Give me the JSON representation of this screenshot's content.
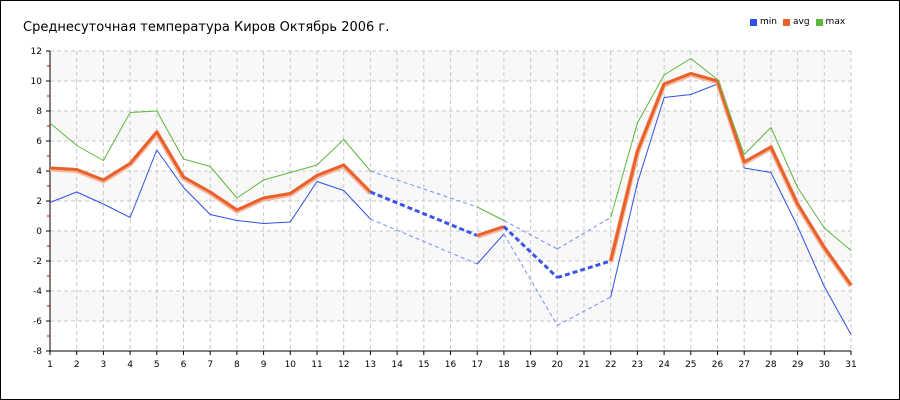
{
  "chart_data": {
    "type": "line",
    "title": "Среднесуточная температура Киров  Октябрь 2006 г.",
    "x": [
      1,
      2,
      3,
      4,
      5,
      6,
      7,
      8,
      9,
      10,
      11,
      12,
      13,
      14,
      15,
      16,
      17,
      18,
      19,
      20,
      21,
      22,
      23,
      24,
      25,
      26,
      27,
      28,
      29,
      30,
      31
    ],
    "xlim": [
      1,
      31
    ],
    "ylim": [
      -8,
      12
    ],
    "yticks": [
      -8,
      -6,
      -4,
      -2,
      0,
      2,
      4,
      6,
      8,
      10,
      12
    ],
    "grid": true,
    "legend_position": "top-right",
    "missing_values_interpolated": "dashed",
    "series": [
      {
        "name": "min",
        "color": "#2f50e6",
        "values": [
          1.9,
          2.6,
          1.8,
          0.9,
          5.4,
          2.9,
          1.1,
          0.7,
          0.5,
          0.6,
          3.3,
          2.7,
          0.8,
          null,
          null,
          null,
          -2.2,
          -0.2,
          null,
          -6.3,
          null,
          -4.4,
          3.2,
          8.9,
          9.1,
          9.8,
          4.2,
          3.9,
          0.3,
          -3.7,
          -6.9
        ]
      },
      {
        "name": "avg",
        "color": "#e8602a",
        "values": [
          4.2,
          4.1,
          3.4,
          4.5,
          6.6,
          3.6,
          2.6,
          1.4,
          2.2,
          2.5,
          3.7,
          4.4,
          2.6,
          null,
          null,
          null,
          -0.3,
          0.3,
          null,
          -3.1,
          null,
          -2.0,
          5.3,
          9.8,
          10.5,
          10.0,
          4.6,
          5.6,
          1.8,
          -1.1,
          -3.6
        ]
      },
      {
        "name": "max",
        "color": "#5cb83a",
        "values": [
          7.2,
          5.7,
          4.7,
          7.9,
          8.0,
          4.8,
          4.3,
          2.2,
          3.4,
          3.9,
          4.4,
          6.1,
          4.0,
          null,
          null,
          null,
          1.6,
          0.7,
          null,
          -1.2,
          null,
          0.9,
          7.2,
          10.4,
          11.5,
          10.1,
          5.1,
          6.9,
          2.9,
          0.2,
          -1.3
        ]
      }
    ]
  }
}
